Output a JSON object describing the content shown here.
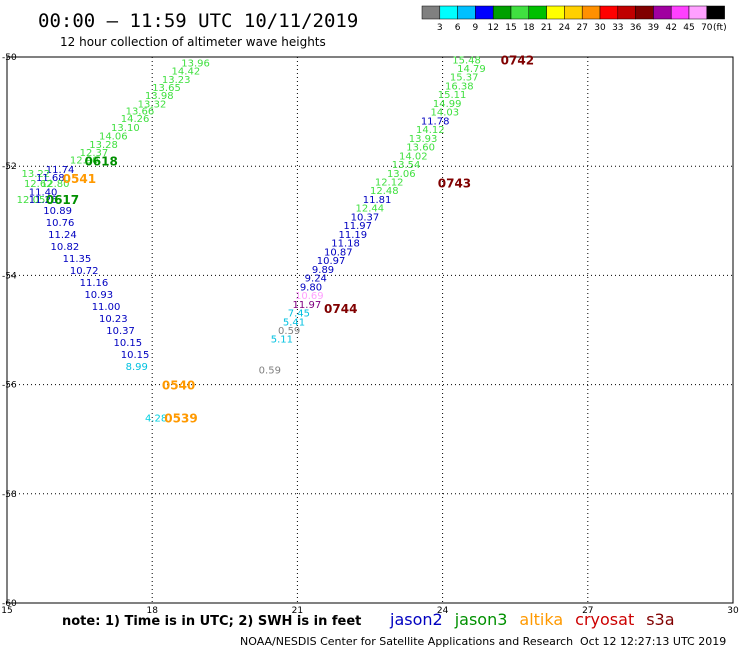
{
  "header": {
    "title": "00:00 – 11:59 UTC 10/11/2019",
    "subtitle": "12 hour collection of altimeter wave heights"
  },
  "colorbar": {
    "colors": [
      "#808080",
      "#00ffff",
      "#00c0ff",
      "#0000ff",
      "#00a000",
      "#40e040",
      "#00c000",
      "#ffff00",
      "#ffd000",
      "#ff9000",
      "#ff0000",
      "#c00000",
      "#800000",
      "#a000a0",
      "#ff40ff",
      "#ffa0ff",
      "#000000"
    ],
    "labels": [
      "3",
      "6",
      "9",
      "12",
      "15",
      "18",
      "21",
      "24",
      "27",
      "30",
      "33",
      "36",
      "39",
      "42",
      "45",
      "70"
    ],
    "unit": "(ft)"
  },
  "legend": {
    "note": "note: 1) Time is in UTC; 2) SWH is in feet",
    "sats": [
      {
        "name": "jason2",
        "color": "#0000c0"
      },
      {
        "name": "jason3",
        "color": "#009000"
      },
      {
        "name": "altika",
        "color": "#ff9900"
      },
      {
        "name": "cryosat",
        "color": "#cc0000"
      },
      {
        "name": "s3a",
        "color": "#800000"
      }
    ]
  },
  "footer": {
    "credit": "NOAA/NESDIS Center for Satellite Applications and Research",
    "timestamp": "Oct 12 12:27:13 UTC 2019"
  },
  "chart_data": {
    "type": "scatter",
    "xlim": [
      15,
      30
    ],
    "ylim": [
      -60,
      -50
    ],
    "xticks": [
      "15",
      "18",
      "21",
      "24",
      "27",
      "30"
    ],
    "yticks": [
      "-50",
      "-52",
      "-54",
      "-56",
      "-58",
      "-60"
    ],
    "grid": true,
    "points": [
      {
        "x": 18.6,
        "y": -50.1,
        "v": "13.96",
        "c": "#40e040"
      },
      {
        "x": 18.4,
        "y": -50.25,
        "v": "14.42",
        "c": "#40e040"
      },
      {
        "x": 18.2,
        "y": -50.4,
        "v": "13.23",
        "c": "#40e040"
      },
      {
        "x": 18.0,
        "y": -50.55,
        "v": "13.65",
        "c": "#40e040"
      },
      {
        "x": 17.85,
        "y": -50.7,
        "v": "13.98",
        "c": "#40e040"
      },
      {
        "x": 17.7,
        "y": -50.85,
        "v": "13.32",
        "c": "#40e040"
      },
      {
        "x": 17.45,
        "y": -50.98,
        "v": "13.66",
        "c": "#40e040"
      },
      {
        "x": 17.35,
        "y": -51.12,
        "v": "14.26",
        "c": "#40e040"
      },
      {
        "x": 17.15,
        "y": -51.28,
        "v": "13.10",
        "c": "#40e040"
      },
      {
        "x": 16.9,
        "y": -51.44,
        "v": "14.06",
        "c": "#40e040"
      },
      {
        "x": 16.7,
        "y": -51.59,
        "v": "13.28",
        "c": "#40e040"
      },
      {
        "x": 16.5,
        "y": -51.74,
        "v": "12.37",
        "c": "#40e040"
      },
      {
        "x": 16.3,
        "y": -51.88,
        "v": "12.90",
        "c": "#40e040"
      },
      {
        "x": 15.8,
        "y": -52.05,
        "v": "11.74",
        "c": "#0000c0"
      },
      {
        "x": 15.3,
        "y": -52.12,
        "v": "13.22",
        "c": "#40e040"
      },
      {
        "x": 15.6,
        "y": -52.2,
        "v": "11.68",
        "c": "#0000c0"
      },
      {
        "x": 15.35,
        "y": -52.31,
        "v": "12.62",
        "c": "#40e040"
      },
      {
        "x": 15.7,
        "y": -52.31,
        "v": "12.80",
        "c": "#40e040"
      },
      {
        "x": 15.45,
        "y": -52.46,
        "v": "11.40",
        "c": "#0000c0"
      },
      {
        "x": 15.2,
        "y": -52.6,
        "v": "12.05",
        "c": "#40e040"
      },
      {
        "x": 15.45,
        "y": -52.6,
        "v": "11.26",
        "c": "#0000c0"
      },
      {
        "x": 15.75,
        "y": -52.8,
        "v": "10.89",
        "c": "#0000c0"
      },
      {
        "x": 15.8,
        "y": -53.02,
        "v": "10.76",
        "c": "#0000c0"
      },
      {
        "x": 15.85,
        "y": -53.24,
        "v": "11.24",
        "c": "#0000c0"
      },
      {
        "x": 15.9,
        "y": -53.46,
        "v": "10.82",
        "c": "#0000c0"
      },
      {
        "x": 16.15,
        "y": -53.68,
        "v": "11.35",
        "c": "#0000c0"
      },
      {
        "x": 16.3,
        "y": -53.9,
        "v": "10.72",
        "c": "#0000c0"
      },
      {
        "x": 16.5,
        "y": -54.12,
        "v": "11.16",
        "c": "#0000c0"
      },
      {
        "x": 16.6,
        "y": -54.34,
        "v": "10.93",
        "c": "#0000c0"
      },
      {
        "x": 16.75,
        "y": -54.56,
        "v": "11.00",
        "c": "#0000c0"
      },
      {
        "x": 16.9,
        "y": -54.78,
        "v": "10.23",
        "c": "#0000c0"
      },
      {
        "x": 17.05,
        "y": -55.0,
        "v": "10.37",
        "c": "#0000c0"
      },
      {
        "x": 17.2,
        "y": -55.22,
        "v": "10.15",
        "c": "#0000c0"
      },
      {
        "x": 17.35,
        "y": -55.44,
        "v": "10.15",
        "c": "#0000c0"
      },
      {
        "x": 17.45,
        "y": -55.66,
        "v": "8.99",
        "c": "#00c0e0"
      },
      {
        "x": 17.85,
        "y": -56.6,
        "v": "4.28",
        "c": "#00d0e0"
      },
      {
        "x": 24.2,
        "y": -50.05,
        "v": "15.48",
        "c": "#40e040"
      },
      {
        "x": 24.3,
        "y": -50.2,
        "v": "14.79",
        "c": "#40e040"
      },
      {
        "x": 24.15,
        "y": -50.36,
        "v": "15.37",
        "c": "#40e040"
      },
      {
        "x": 24.05,
        "y": -50.52,
        "v": "16.38",
        "c": "#40e040"
      },
      {
        "x": 23.9,
        "y": -50.68,
        "v": "15.11",
        "c": "#40e040"
      },
      {
        "x": 23.8,
        "y": -50.84,
        "v": "14.99",
        "c": "#40e040"
      },
      {
        "x": 23.75,
        "y": -51.0,
        "v": "14.03",
        "c": "#40e040"
      },
      {
        "x": 23.55,
        "y": -51.16,
        "v": "11.78",
        "c": "#0000c0"
      },
      {
        "x": 23.45,
        "y": -51.32,
        "v": "14.12",
        "c": "#40e040"
      },
      {
        "x": 23.3,
        "y": -51.48,
        "v": "13.93",
        "c": "#40e040"
      },
      {
        "x": 23.25,
        "y": -51.64,
        "v": "13.60",
        "c": "#40e040"
      },
      {
        "x": 23.1,
        "y": -51.8,
        "v": "14.02",
        "c": "#40e040"
      },
      {
        "x": 22.95,
        "y": -51.96,
        "v": "13.54",
        "c": "#40e040"
      },
      {
        "x": 22.85,
        "y": -52.12,
        "v": "13.06",
        "c": "#40e040"
      },
      {
        "x": 22.6,
        "y": -52.28,
        "v": "12.12",
        "c": "#40e040"
      },
      {
        "x": 22.5,
        "y": -52.44,
        "v": "12.48",
        "c": "#40e040"
      },
      {
        "x": 22.35,
        "y": -52.6,
        "v": "11.81",
        "c": "#0000c0"
      },
      {
        "x": 22.2,
        "y": -52.76,
        "v": "12.44",
        "c": "#40e040"
      },
      {
        "x": 22.1,
        "y": -52.92,
        "v": "10.37",
        "c": "#0000c0"
      },
      {
        "x": 21.95,
        "y": -53.08,
        "v": "11.97",
        "c": "#0000c0"
      },
      {
        "x": 21.85,
        "y": -53.24,
        "v": "11.19",
        "c": "#0000c0"
      },
      {
        "x": 21.7,
        "y": -53.4,
        "v": "11.18",
        "c": "#0000c0"
      },
      {
        "x": 21.55,
        "y": -53.56,
        "v": "10.87",
        "c": "#0000c0"
      },
      {
        "x": 21.4,
        "y": -53.72,
        "v": "10.97",
        "c": "#0000c0"
      },
      {
        "x": 21.3,
        "y": -53.88,
        "v": "9.89",
        "c": "#0000c0"
      },
      {
        "x": 21.15,
        "y": -54.04,
        "v": "9.24",
        "c": "#0000c0"
      },
      {
        "x": 21.05,
        "y": -54.2,
        "v": "9.80",
        "c": "#0000c0"
      },
      {
        "x": 20.95,
        "y": -54.36,
        "v": "10.69",
        "c": "#ffa0ff"
      },
      {
        "x": 20.9,
        "y": -54.52,
        "v": "11.97",
        "c": "#800080"
      },
      {
        "x": 20.8,
        "y": -54.68,
        "v": "7.45",
        "c": "#00c0e0"
      },
      {
        "x": 20.7,
        "y": -54.84,
        "v": "5.41",
        "c": "#00c0e0"
      },
      {
        "x": 20.6,
        "y": -55.0,
        "v": "0.59",
        "c": "#808080"
      },
      {
        "x": 20.45,
        "y": -55.16,
        "v": "5.11",
        "c": "#00c0e0"
      },
      {
        "x": 20.2,
        "y": -55.72,
        "v": "0.59",
        "c": "#808080"
      }
    ],
    "labels": [
      {
        "x": 16.6,
        "y": -51.9,
        "v": "0618",
        "c": "#009000"
      },
      {
        "x": 16.15,
        "y": -52.22,
        "v": "0541",
        "c": "#ff9900"
      },
      {
        "x": 15.8,
        "y": -52.6,
        "v": "0617",
        "c": "#009000"
      },
      {
        "x": 18.2,
        "y": -56.0,
        "v": "0540",
        "c": "#ff9900"
      },
      {
        "x": 18.25,
        "y": -56.6,
        "v": "0539",
        "c": "#ff9900"
      },
      {
        "x": 25.2,
        "y": -50.05,
        "v": "0742",
        "c": "#800000"
      },
      {
        "x": 23.9,
        "y": -52.3,
        "v": "0743",
        "c": "#800000"
      },
      {
        "x": 21.55,
        "y": -54.6,
        "v": "0744",
        "c": "#800000"
      }
    ]
  }
}
